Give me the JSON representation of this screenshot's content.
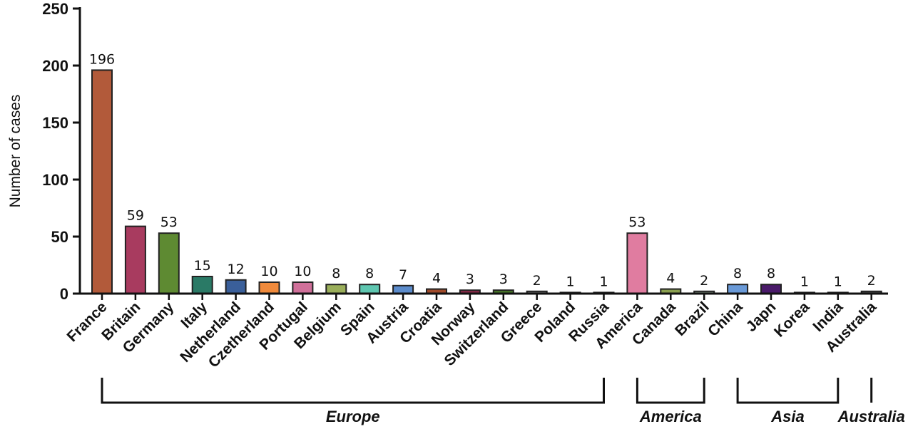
{
  "chart_data": {
    "type": "bar",
    "ylabel": "Number of cases",
    "xlabel": "",
    "ylim": [
      0,
      250
    ],
    "yticks": [
      0,
      50,
      100,
      150,
      200,
      250
    ],
    "grid": false,
    "categories": [
      "France",
      "Britain",
      "Germany",
      "Italy",
      "Netherland",
      "Czetherland",
      "Portugal",
      "Belgium",
      "Spain",
      "Austria",
      "Croatia",
      "Norway",
      "Switzerland",
      "Greece",
      "Poland",
      "Russia",
      "America",
      "Canada",
      "Brazil",
      "China",
      "Japn",
      "Korea",
      "India",
      "Australia"
    ],
    "values": [
      196,
      59,
      53,
      15,
      12,
      10,
      10,
      8,
      8,
      7,
      4,
      3,
      3,
      2,
      1,
      1,
      53,
      4,
      2,
      8,
      8,
      1,
      1,
      2
    ],
    "colors": [
      "#b25a3a",
      "#a83b5f",
      "#5e8a32",
      "#2a7a66",
      "#3a5f9a",
      "#f08a3c",
      "#d0709a",
      "#9aae5a",
      "#5ec6b0",
      "#5c8ccc",
      "#a04a2a",
      "#8a2a4a",
      "#4a7a2a",
      "#6a6a6a",
      "#3a3a3a",
      "#3a3a3a",
      "#e07ca0",
      "#8aa050",
      "#7a8a7a",
      "#6a9ad8",
      "#4a1a6a",
      "#3a3a3a",
      "#3a3a3a",
      "#4a4a4a"
    ],
    "groups": [
      {
        "name": "Europe",
        "start": 0,
        "end": 15
      },
      {
        "name": "America",
        "start": 16,
        "end": 18
      },
      {
        "name": "Asia",
        "start": 19,
        "end": 22
      },
      {
        "name": "Australia",
        "start": 23,
        "end": 23
      }
    ]
  }
}
